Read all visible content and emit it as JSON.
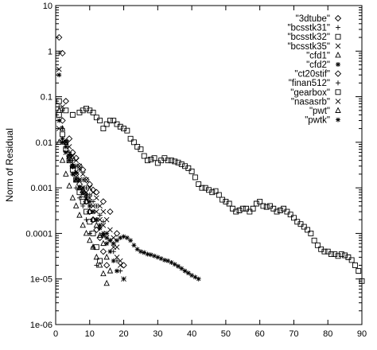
{
  "chart_data": {
    "type": "scatter",
    "title": "",
    "xlabel": "",
    "ylabel": "Norm of Residual",
    "xlim": [
      0,
      90
    ],
    "ylim": [
      1e-06,
      10
    ],
    "yscale": "log",
    "grid": false,
    "legend_position": "top-right",
    "x_ticks": [
      0,
      10,
      20,
      30,
      40,
      50,
      60,
      70,
      80,
      90
    ],
    "y_ticks": [
      10,
      1,
      0.1,
      0.01,
      0.001,
      0.0001,
      1e-05,
      1e-06
    ],
    "y_tick_labels": [
      "10",
      "1",
      "0.1",
      "0.01",
      "0.001",
      "0.0001",
      "1e-05",
      "1e-06"
    ],
    "series": [
      {
        "name": "\"3dtube\"",
        "marker": "diamond",
        "x": [
          1,
          2,
          3,
          4,
          5,
          6,
          7,
          8,
          9,
          10,
          11,
          12,
          14,
          16,
          18,
          20
        ],
        "y": [
          2.0,
          0.9,
          0.08,
          0.012,
          0.006,
          0.0045,
          0.003,
          0.0025,
          0.0015,
          0.0012,
          0.0009,
          0.0008,
          0.0005,
          0.0003,
          0.0001,
          2e-05
        ]
      },
      {
        "name": "\"bcsstk31\"",
        "marker": "plus",
        "x": [
          1,
          2,
          3,
          4,
          5,
          6,
          7,
          8,
          9,
          10,
          11,
          12,
          13,
          14,
          15,
          16,
          17,
          18,
          19,
          20
        ],
        "y": [
          0.9,
          0.05,
          0.01,
          0.006,
          0.004,
          0.003,
          0.0025,
          0.0015,
          0.001,
          0.0007,
          0.0005,
          0.0004,
          0.00025,
          0.00018,
          0.0001,
          7e-05,
          4e-05,
          2.5e-05,
          1.5e-05,
          1e-05
        ]
      },
      {
        "name": "\"bcsstk32\"",
        "marker": "square",
        "x": [
          1,
          3,
          5,
          7,
          8,
          9,
          10,
          11,
          12,
          13,
          14,
          15,
          16,
          17,
          18,
          19,
          20,
          21,
          22,
          23,
          24,
          25,
          26,
          27,
          28,
          29,
          30,
          31,
          32,
          33,
          34,
          35,
          36,
          37,
          38,
          39,
          40,
          41,
          42,
          43,
          44,
          45,
          46,
          47,
          48,
          49,
          50,
          51,
          52,
          53,
          54,
          55,
          56,
          57,
          58,
          59,
          60,
          61,
          62,
          63,
          64,
          65,
          66,
          67,
          68,
          69,
          70,
          71,
          72,
          73,
          74,
          75,
          76,
          77,
          78,
          79,
          80,
          81,
          82,
          83,
          84,
          85,
          86,
          87,
          88,
          89,
          90
        ],
        "y": [
          0.08,
          0.05,
          0.04,
          0.045,
          0.05,
          0.055,
          0.05,
          0.045,
          0.035,
          0.03,
          0.02,
          0.025,
          0.03,
          0.03,
          0.025,
          0.022,
          0.02,
          0.018,
          0.012,
          0.01,
          0.008,
          0.007,
          0.005,
          0.004,
          0.0042,
          0.0045,
          0.0035,
          0.004,
          0.0045,
          0.004,
          0.004,
          0.0038,
          0.0036,
          0.0033,
          0.003,
          0.0027,
          0.0023,
          0.0017,
          0.0012,
          0.001,
          0.001,
          0.0009,
          0.0008,
          0.00085,
          0.0007,
          0.00055,
          0.0005,
          0.00045,
          0.00035,
          0.0003,
          0.00032,
          0.00035,
          0.00035,
          0.0003,
          0.00035,
          0.00045,
          0.0005,
          0.0004,
          0.00038,
          0.0004,
          0.00035,
          0.0003,
          0.00032,
          0.00035,
          0.0003,
          0.00026,
          0.00022,
          0.00018,
          0.00016,
          0.00014,
          0.00012,
          0.0001,
          7e-05,
          5.5e-05,
          4.5e-05,
          4e-05,
          4e-05,
          3.5e-05,
          3.5e-05,
          3.2e-05,
          3.5e-05,
          3.3e-05,
          3e-05,
          2.6e-05,
          2e-05,
          1.5e-05,
          9e-06
        ]
      },
      {
        "name": "\"bcsstk35\"",
        "marker": "cross",
        "x": [
          1,
          2,
          3,
          4,
          5,
          6,
          7,
          8,
          9,
          10,
          11,
          12,
          13,
          14,
          15,
          16,
          17,
          18,
          19
        ],
        "y": [
          0.4,
          0.06,
          0.01,
          0.008,
          0.005,
          0.004,
          0.003,
          0.002,
          0.0015,
          0.001,
          0.0008,
          0.0006,
          0.0004,
          0.0003,
          0.0002,
          0.00012,
          8e-05,
          5e-05,
          2.5e-05
        ]
      },
      {
        "name": "\"cfd1\"",
        "marker": "triangle",
        "x": [
          1,
          2,
          3,
          4,
          5,
          6,
          7,
          8,
          9,
          10,
          11,
          12,
          13,
          14,
          15,
          16
        ],
        "y": [
          0.05,
          0.02,
          0.01,
          0.005,
          0.003,
          0.0015,
          0.001,
          0.0007,
          0.0005,
          0.0003,
          0.0002,
          0.00015,
          9e-05,
          6e-05,
          3e-05,
          1.5e-05
        ]
      },
      {
        "name": "\"cfd2\"",
        "marker": "asterisk",
        "x": [
          1,
          2,
          3,
          4,
          5,
          6,
          7,
          8,
          9,
          10,
          11,
          12,
          13,
          14,
          15,
          16,
          17,
          18,
          19,
          20,
          21,
          22,
          23,
          24,
          25,
          26,
          27,
          28,
          29,
          30,
          31,
          32,
          33,
          34,
          35,
          36,
          37,
          38,
          39,
          40,
          41,
          42
        ],
        "y": [
          0.03,
          0.01,
          0.006,
          0.004,
          0.002,
          0.0015,
          0.001,
          0.0008,
          0.0006,
          0.0004,
          0.0003,
          0.0002,
          0.00015,
          0.0001,
          8e-05,
          7e-05,
          6e-05,
          7e-05,
          8e-05,
          8.5e-05,
          8e-05,
          7e-05,
          5.5e-05,
          4.5e-05,
          4e-05,
          3.8e-05,
          3.5e-05,
          3.4e-05,
          3.2e-05,
          3e-05,
          2.8e-05,
          2.6e-05,
          2.5e-05,
          2.3e-05,
          2.1e-05,
          1.9e-05,
          1.7e-05,
          1.5e-05,
          1.35e-05,
          1.2e-05,
          1.1e-05,
          1e-05
        ]
      },
      {
        "name": "\"ct20stif\"",
        "marker": "diamond",
        "x": [
          2,
          3,
          4,
          5,
          6,
          7,
          8,
          9,
          10,
          11,
          12,
          13,
          14,
          15
        ],
        "y": [
          0.03,
          0.01,
          0.005,
          0.003,
          0.002,
          0.0012,
          0.0008,
          0.0005,
          0.0003,
          0.0002,
          0.00012,
          8e-05,
          4e-05,
          2e-05
        ]
      },
      {
        "name": "\"finan512\"",
        "marker": "plus",
        "x": [
          1,
          2,
          3,
          4,
          5,
          6,
          7,
          8,
          9,
          10,
          11,
          12
        ],
        "y": [
          0.06,
          0.02,
          0.008,
          0.004,
          0.002,
          0.001,
          0.0006,
          0.0004,
          0.0002,
          0.0001,
          5e-05,
          2e-05
        ]
      },
      {
        "name": "\"gearbox\"",
        "marker": "square",
        "x": [
          1,
          2,
          3,
          4,
          5,
          6,
          7,
          8,
          9,
          10,
          11,
          12,
          13
        ],
        "y": [
          0.04,
          0.015,
          0.007,
          0.004,
          0.0025,
          0.0015,
          0.0008,
          0.0005,
          0.0003,
          0.00018,
          0.0001,
          5e-05,
          2.5e-05
        ]
      },
      {
        "name": "\"nasasrb\"",
        "marker": "cross",
        "x": [
          1,
          2,
          3,
          4,
          5,
          6,
          7,
          8,
          9,
          10,
          11,
          12,
          13,
          14,
          15,
          16,
          17,
          18,
          19,
          20
        ],
        "y": [
          0.02,
          0.01,
          0.006,
          0.004,
          0.003,
          0.002,
          0.0015,
          0.001,
          0.0008,
          0.0006,
          0.0004,
          0.0003,
          0.0002,
          0.00015,
          0.0001,
          7e-05,
          5e-05,
          3e-05,
          2e-05,
          1e-05
        ]
      },
      {
        "name": "\"pwt\"",
        "marker": "triangle",
        "x": [
          1,
          2,
          3,
          4,
          5,
          6,
          7,
          8,
          9,
          10,
          11,
          12,
          13,
          14,
          15
        ],
        "y": [
          0.01,
          0.004,
          0.002,
          0.0011,
          0.0006,
          0.0004,
          0.00025,
          0.00015,
          0.0001,
          7e-05,
          5e-05,
          3e-05,
          2e-05,
          1.3e-05,
          8e-06
        ]
      },
      {
        "name": "\"pwtk\"",
        "marker": "asterisk",
        "x": [
          1,
          2,
          3,
          4,
          5,
          6,
          7,
          8,
          9,
          10,
          11,
          12,
          13,
          14,
          15,
          16,
          17,
          18
        ],
        "y": [
          0.3,
          0.012,
          0.008,
          0.005,
          0.003,
          0.0022,
          0.0015,
          0.001,
          0.0007,
          0.0005,
          0.0003,
          0.0002,
          0.00013,
          9e-05,
          6e-05,
          4e-05,
          2.5e-05,
          1.5e-05
        ]
      }
    ]
  }
}
